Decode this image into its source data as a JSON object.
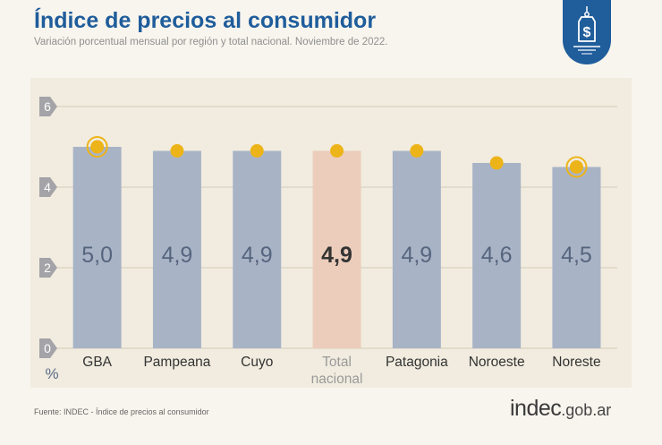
{
  "header": {
    "title": "Índice de precios al consumidor",
    "subtitle": "Variación porcentual mensual por región y total nacional. Noviembre de 2022."
  },
  "chart_data": {
    "type": "bar",
    "title": "Índice de precios al consumidor",
    "subtitle": "Variación porcentual mensual por región y total nacional. Noviembre de 2022.",
    "xlabel": "",
    "ylabel": "%",
    "ylim": [
      0,
      6
    ],
    "yticks": [
      0,
      2,
      4,
      6
    ],
    "categories": [
      "GBA",
      "Pampeana",
      "Cuyo",
      "Total nacional",
      "Patagonia",
      "Noroeste",
      "Noreste"
    ],
    "category_lines": [
      [
        "GBA"
      ],
      [
        "Pampeana"
      ],
      [
        "Cuyo"
      ],
      [
        "Total",
        "nacional"
      ],
      [
        "Patagonia"
      ],
      [
        "Noroeste"
      ],
      [
        "Noreste"
      ]
    ],
    "values": [
      5.0,
      4.9,
      4.9,
      4.9,
      4.9,
      4.6,
      4.5
    ],
    "value_labels": [
      "5,0",
      "4,9",
      "4,9",
      "4,9",
      "4,9",
      "4,6",
      "4,5"
    ],
    "highlight_index": 3,
    "ringed_markers": [
      0,
      6
    ],
    "grid": true,
    "colors": {
      "bar": "#a8b3c6",
      "bar_highlight": "#eccdbb",
      "marker": "#edb419",
      "value_text": "#56657e",
      "value_text_highlight": "#333333",
      "grid": "#d2cbb9",
      "axis_badge": "#a3a3a8",
      "category_text": "#333333",
      "category_text_highlight": "#9a9a9a"
    }
  },
  "footer": {
    "source": "Fuente: INDEC - Índice de precios al consumidor",
    "brand_main": "indec",
    "brand_suffix": ".gob.ar"
  },
  "badge": {
    "icon": "price-tag-dollar-icon",
    "symbol": "$"
  }
}
